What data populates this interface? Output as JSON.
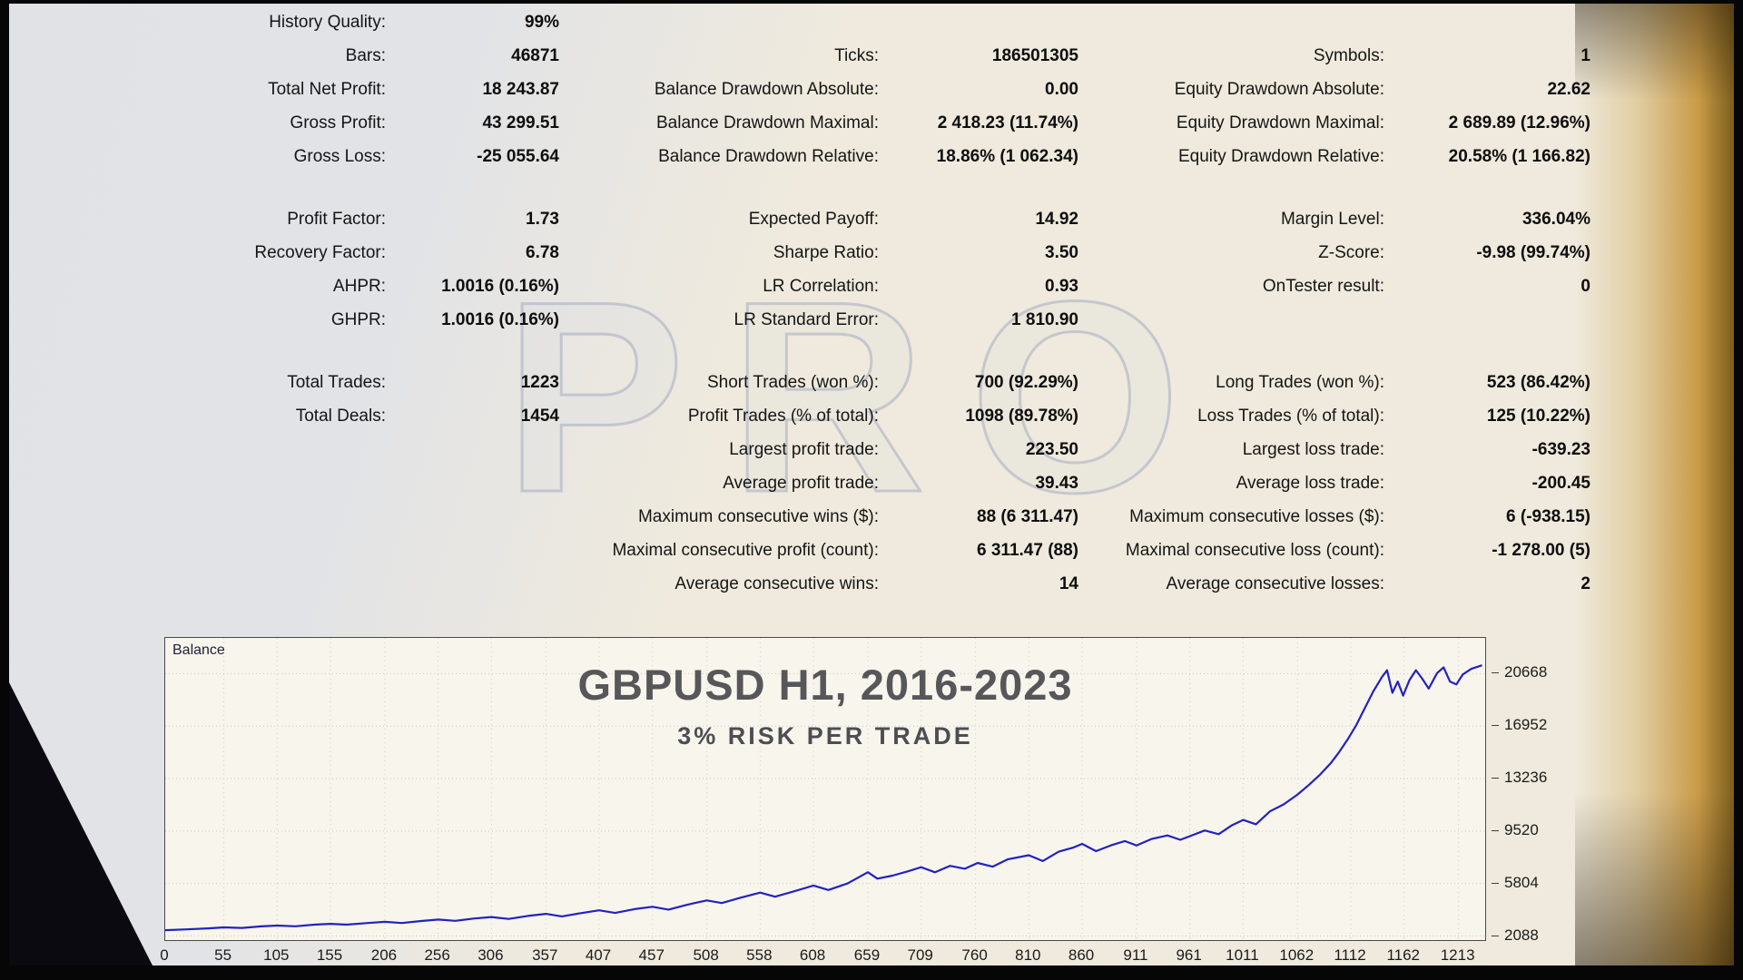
{
  "watermark": {
    "text": "PRO"
  },
  "colors": {
    "background": "#efeadd",
    "accent_gold": "#c89a46",
    "balance_line": "#2222c0",
    "frame": "#060606"
  },
  "stats": {
    "rows": [
      {
        "gap_before": false,
        "cells": [
          [
            "History Quality:",
            "99%"
          ],
          [
            "",
            ""
          ],
          [
            "",
            ""
          ]
        ]
      },
      {
        "gap_before": false,
        "cells": [
          [
            "Bars:",
            "46871"
          ],
          [
            "Ticks:",
            "186501305"
          ],
          [
            "Symbols:",
            "1"
          ]
        ]
      },
      {
        "gap_before": false,
        "cells": [
          [
            "Total Net Profit:",
            "18 243.87"
          ],
          [
            "Balance Drawdown Absolute:",
            "0.00"
          ],
          [
            "Equity Drawdown Absolute:",
            "22.62"
          ]
        ]
      },
      {
        "gap_before": false,
        "cells": [
          [
            "Gross Profit:",
            "43 299.51"
          ],
          [
            "Balance Drawdown Maximal:",
            "2 418.23 (11.74%)"
          ],
          [
            "Equity Drawdown Maximal:",
            "2 689.89 (12.96%)"
          ]
        ]
      },
      {
        "gap_before": false,
        "cells": [
          [
            "Gross Loss:",
            "-25 055.64"
          ],
          [
            "Balance Drawdown Relative:",
            "18.86% (1 062.34)"
          ],
          [
            "Equity Drawdown Relative:",
            "20.58% (1 166.82)"
          ]
        ]
      },
      {
        "gap_before": true,
        "cells": [
          [
            "Profit Factor:",
            "1.73"
          ],
          [
            "Expected Payoff:",
            "14.92"
          ],
          [
            "Margin Level:",
            "336.04%"
          ]
        ]
      },
      {
        "gap_before": false,
        "cells": [
          [
            "Recovery Factor:",
            "6.78"
          ],
          [
            "Sharpe Ratio:",
            "3.50"
          ],
          [
            "Z-Score:",
            "-9.98 (99.74%)"
          ]
        ]
      },
      {
        "gap_before": false,
        "cells": [
          [
            "AHPR:",
            "1.0016 (0.16%)"
          ],
          [
            "LR Correlation:",
            "0.93"
          ],
          [
            "OnTester result:",
            "0"
          ]
        ]
      },
      {
        "gap_before": false,
        "cells": [
          [
            "GHPR:",
            "1.0016 (0.16%)"
          ],
          [
            "LR Standard Error:",
            "1 810.90"
          ],
          [
            "",
            ""
          ]
        ]
      },
      {
        "gap_before": true,
        "cells": [
          [
            "Total Trades:",
            "1223"
          ],
          [
            "Short Trades (won %):",
            "700 (92.29%)"
          ],
          [
            "Long Trades (won %):",
            "523 (86.42%)"
          ]
        ]
      },
      {
        "gap_before": false,
        "cells": [
          [
            "Total Deals:",
            "1454"
          ],
          [
            "Profit Trades (% of total):",
            "1098 (89.78%)"
          ],
          [
            "Loss Trades (% of total):",
            "125 (10.22%)"
          ]
        ]
      },
      {
        "gap_before": false,
        "cells": [
          [
            "",
            ""
          ],
          [
            "Largest profit trade:",
            "223.50"
          ],
          [
            "Largest loss trade:",
            "-639.23"
          ]
        ]
      },
      {
        "gap_before": false,
        "cells": [
          [
            "",
            ""
          ],
          [
            "Average profit trade:",
            "39.43"
          ],
          [
            "Average loss trade:",
            "-200.45"
          ]
        ]
      },
      {
        "gap_before": false,
        "cells": [
          [
            "",
            ""
          ],
          [
            "Maximum consecutive wins ($):",
            "88 (6 311.47)"
          ],
          [
            "Maximum consecutive losses ($):",
            "6 (-938.15)"
          ]
        ]
      },
      {
        "gap_before": false,
        "cells": [
          [
            "",
            ""
          ],
          [
            "Maximal consecutive profit (count):",
            "6 311.47 (88)"
          ],
          [
            "Maximal consecutive loss (count):",
            "-1 278.00 (5)"
          ]
        ]
      },
      {
        "gap_before": false,
        "cells": [
          [
            "",
            ""
          ],
          [
            "Average consecutive wins:",
            "14"
          ],
          [
            "Average consecutive losses:",
            "2"
          ]
        ]
      }
    ]
  },
  "chart_data": {
    "type": "line",
    "title": "GBPUSD H1, 2016-2023",
    "subtitle": "3% RISK PER TRADE",
    "legend": "Balance",
    "legend_position": "top-left",
    "grid": true,
    "xlabel": "",
    "ylabel": "",
    "x_ticks": [
      0,
      55,
      105,
      155,
      206,
      256,
      306,
      357,
      407,
      457,
      508,
      558,
      608,
      659,
      709,
      760,
      810,
      860,
      911,
      961,
      1011,
      1062,
      1112,
      1162,
      1213
    ],
    "y_ticks": [
      2088,
      5804,
      9520,
      13236,
      16952,
      20668
    ],
    "x_range": [
      0,
      1238
    ],
    "y_range": [
      1800,
      23200
    ],
    "line_color": "#2222c0",
    "points": [
      [
        0,
        2500
      ],
      [
        20,
        2560
      ],
      [
        40,
        2630
      ],
      [
        55,
        2700
      ],
      [
        72,
        2660
      ],
      [
        90,
        2770
      ],
      [
        105,
        2830
      ],
      [
        122,
        2780
      ],
      [
        140,
        2890
      ],
      [
        155,
        2950
      ],
      [
        170,
        2890
      ],
      [
        190,
        3010
      ],
      [
        206,
        3090
      ],
      [
        222,
        3010
      ],
      [
        240,
        3150
      ],
      [
        256,
        3250
      ],
      [
        272,
        3160
      ],
      [
        290,
        3330
      ],
      [
        306,
        3430
      ],
      [
        322,
        3300
      ],
      [
        340,
        3510
      ],
      [
        357,
        3660
      ],
      [
        372,
        3480
      ],
      [
        390,
        3710
      ],
      [
        407,
        3910
      ],
      [
        422,
        3720
      ],
      [
        440,
        3990
      ],
      [
        457,
        4160
      ],
      [
        472,
        3960
      ],
      [
        490,
        4310
      ],
      [
        508,
        4610
      ],
      [
        522,
        4420
      ],
      [
        540,
        4810
      ],
      [
        558,
        5160
      ],
      [
        572,
        4870
      ],
      [
        590,
        5260
      ],
      [
        608,
        5660
      ],
      [
        622,
        5350
      ],
      [
        640,
        5810
      ],
      [
        659,
        6610
      ],
      [
        668,
        6150
      ],
      [
        682,
        6360
      ],
      [
        696,
        6660
      ],
      [
        709,
        6960
      ],
      [
        722,
        6600
      ],
      [
        736,
        7060
      ],
      [
        750,
        6850
      ],
      [
        762,
        7260
      ],
      [
        776,
        7000
      ],
      [
        790,
        7510
      ],
      [
        810,
        7810
      ],
      [
        823,
        7400
      ],
      [
        838,
        8060
      ],
      [
        852,
        8360
      ],
      [
        860,
        8610
      ],
      [
        873,
        8100
      ],
      [
        887,
        8510
      ],
      [
        900,
        8810
      ],
      [
        911,
        8500
      ],
      [
        925,
        8960
      ],
      [
        940,
        9210
      ],
      [
        952,
        8900
      ],
      [
        961,
        9160
      ],
      [
        975,
        9560
      ],
      [
        988,
        9300
      ],
      [
        1000,
        9910
      ],
      [
        1011,
        10310
      ],
      [
        1023,
        10000
      ],
      [
        1036,
        10910
      ],
      [
        1049,
        11410
      ],
      [
        1062,
        12110
      ],
      [
        1073,
        12810
      ],
      [
        1083,
        13510
      ],
      [
        1093,
        14310
      ],
      [
        1101,
        15110
      ],
      [
        1109,
        16010
      ],
      [
        1117,
        17010
      ],
      [
        1125,
        18210
      ],
      [
        1133,
        19410
      ],
      [
        1141,
        20410
      ],
      [
        1146,
        20910
      ],
      [
        1151,
        19310
      ],
      [
        1156,
        20110
      ],
      [
        1161,
        19110
      ],
      [
        1167,
        20210
      ],
      [
        1173,
        20910
      ],
      [
        1179,
        20310
      ],
      [
        1185,
        19610
      ],
      [
        1193,
        20710
      ],
      [
        1199,
        21110
      ],
      [
        1205,
        20110
      ],
      [
        1211,
        19910
      ],
      [
        1217,
        20610
      ],
      [
        1225,
        21010
      ],
      [
        1235,
        21260
      ]
    ]
  }
}
